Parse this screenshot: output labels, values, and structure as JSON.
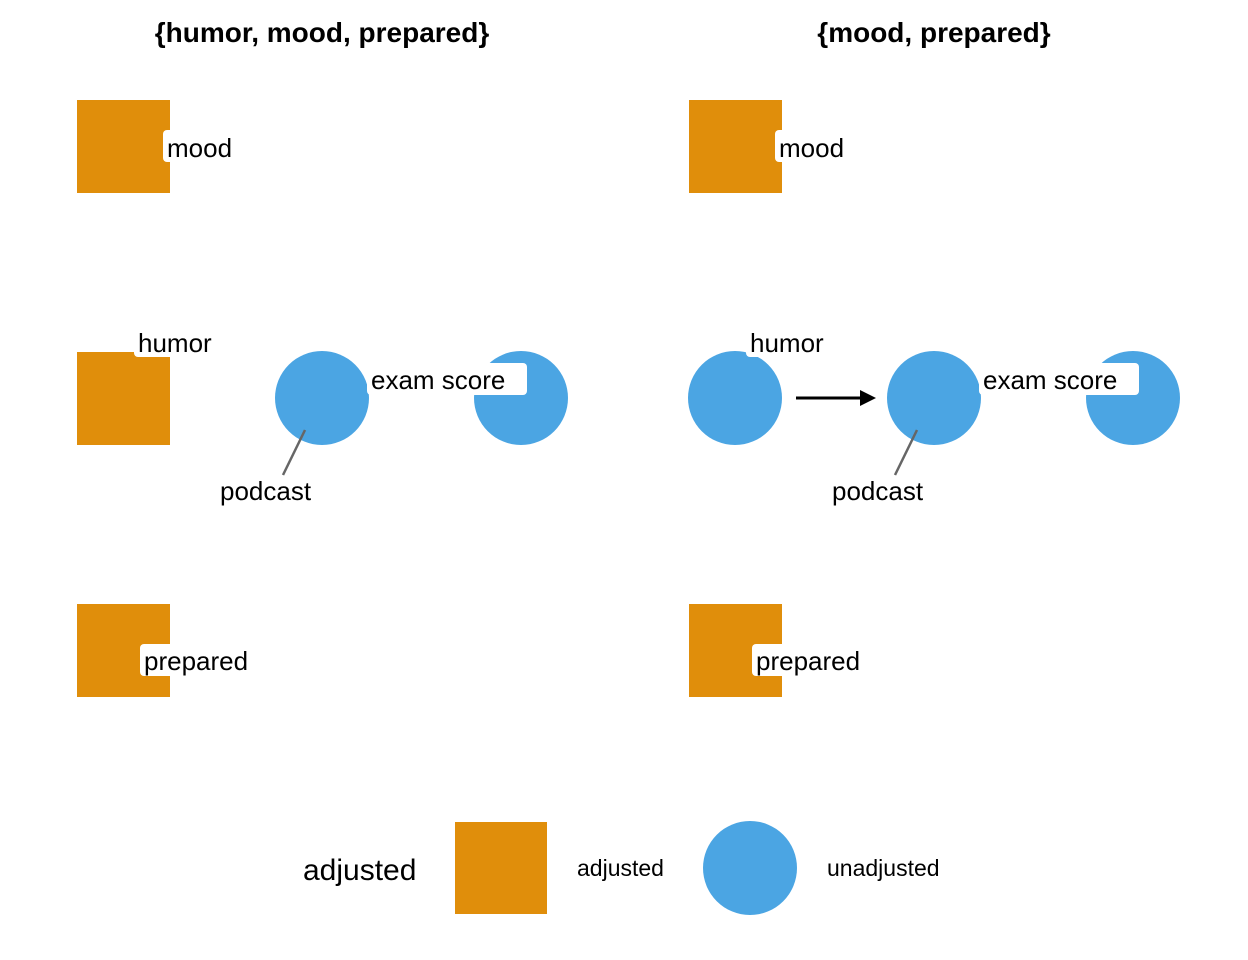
{
  "colors": {
    "adjusted": "#E08E0B",
    "unadjusted": "#4BA5E3"
  },
  "panels": [
    {
      "title": "{humor, mood, prepared}",
      "nodes": [
        {
          "name": "mood",
          "status": "adjusted"
        },
        {
          "name": "humor",
          "status": "adjusted"
        },
        {
          "name": "podcast",
          "status": "unadjusted"
        },
        {
          "name": "exam score",
          "status": "unadjusted"
        },
        {
          "name": "prepared",
          "status": "adjusted"
        }
      ],
      "edges": []
    },
    {
      "title": "{mood, prepared}",
      "nodes": [
        {
          "name": "mood",
          "status": "adjusted"
        },
        {
          "name": "humor",
          "status": "unadjusted"
        },
        {
          "name": "podcast",
          "status": "unadjusted"
        },
        {
          "name": "exam score",
          "status": "unadjusted"
        },
        {
          "name": "prepared",
          "status": "adjusted"
        }
      ],
      "edges": [
        {
          "from": "humor",
          "to": "podcast"
        }
      ]
    }
  ],
  "legend": {
    "title": "adjusted",
    "items": [
      {
        "label": "adjusted",
        "shape": "square"
      },
      {
        "label": "unadjusted",
        "shape": "circle"
      }
    ]
  }
}
